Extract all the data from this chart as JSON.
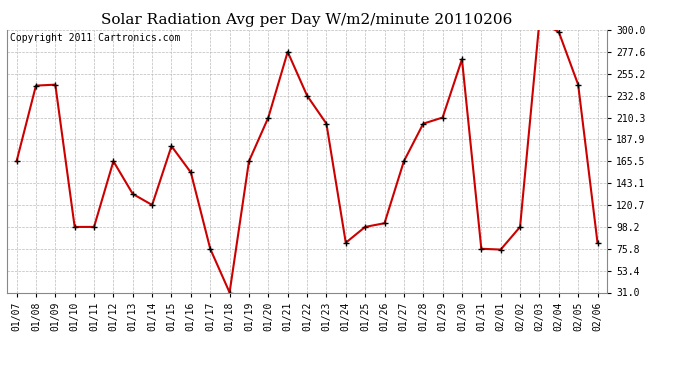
{
  "title": "Solar Radiation Avg per Day W/m2/minute 20110206",
  "copyright": "Copyright 2011 Cartronics.com",
  "dates": [
    "01/07",
    "01/08",
    "01/09",
    "01/10",
    "01/11",
    "01/12",
    "01/13",
    "01/14",
    "01/15",
    "01/16",
    "01/17",
    "01/18",
    "01/19",
    "01/20",
    "01/21",
    "01/22",
    "01/23",
    "01/24",
    "01/25",
    "01/26",
    "01/27",
    "01/28",
    "01/29",
    "01/30",
    "01/31",
    "02/01",
    "02/02",
    "02/03",
    "02/04",
    "02/05",
    "02/06"
  ],
  "values": [
    165.5,
    243.0,
    244.0,
    98.2,
    98.2,
    165.5,
    132.0,
    120.7,
    181.0,
    154.0,
    75.8,
    31.0,
    165.5,
    210.3,
    277.6,
    232.8,
    204.0,
    82.0,
    98.2,
    102.0,
    165.5,
    204.0,
    210.3,
    270.0,
    75.8,
    75.0,
    98.2,
    309.0,
    298.0,
    244.0,
    82.0
  ],
  "line_color": "#cc0000",
  "marker": "+",
  "marker_color": "#000000",
  "marker_size": 5,
  "line_width": 1.5,
  "ylim": [
    31.0,
    300.0
  ],
  "yticks": [
    31.0,
    53.4,
    75.8,
    98.2,
    120.7,
    143.1,
    165.5,
    187.9,
    210.3,
    232.8,
    255.2,
    277.6,
    300.0
  ],
  "bg_color": "#ffffff",
  "grid_color": "#bbbbbb",
  "title_fontsize": 11,
  "copyright_fontsize": 7,
  "tick_fontsize": 7
}
